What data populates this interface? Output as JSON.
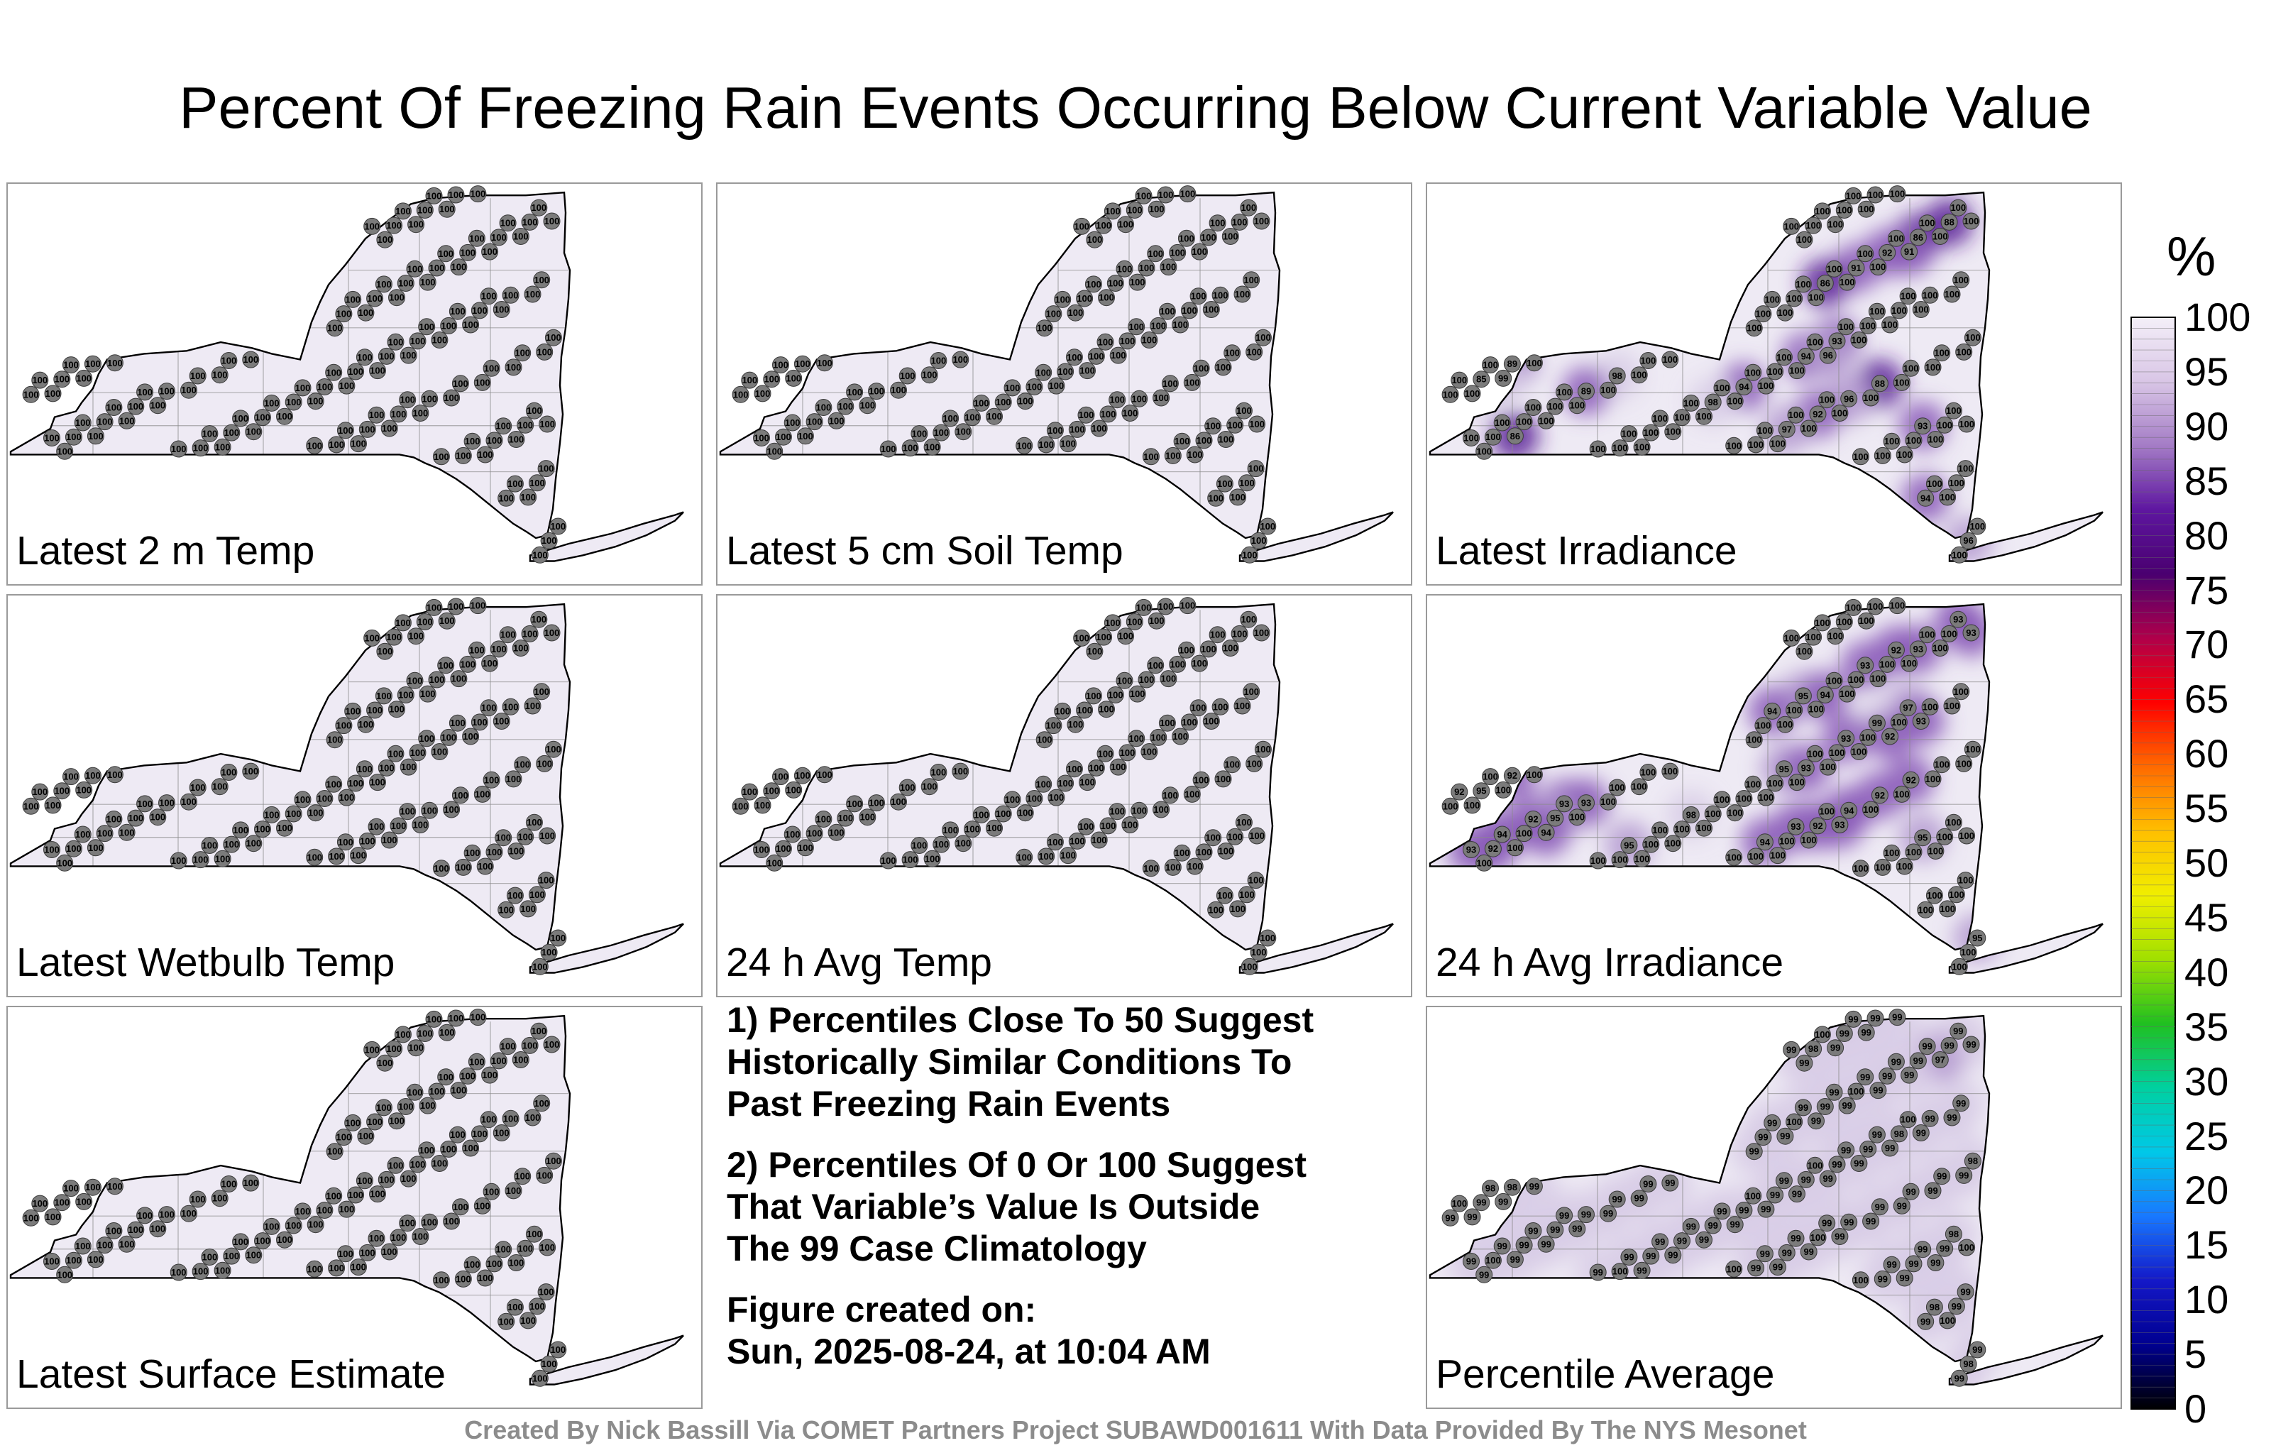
{
  "title": "Percent Of Freezing Rain Events Occurring Below Current Variable Value",
  "panels": [
    {
      "label": "Latest 2 m Temp",
      "values": [
        100,
        100,
        100,
        100,
        100,
        100,
        100,
        100,
        100,
        100,
        100,
        100,
        100,
        100,
        100,
        100,
        100,
        100,
        100,
        100,
        100,
        100,
        100,
        100,
        100,
        100,
        100,
        100,
        100,
        100,
        100,
        100,
        100,
        100,
        100,
        100,
        100,
        100,
        100,
        100,
        100,
        100,
        100,
        100,
        100,
        100,
        100,
        100,
        100,
        100,
        100,
        100,
        100,
        100,
        100,
        100,
        100,
        100,
        100,
        100,
        100,
        100,
        100,
        100,
        100,
        100,
        100,
        100,
        100,
        100,
        100,
        100,
        100,
        100,
        100,
        100,
        100,
        100,
        100,
        100,
        100,
        100,
        100,
        100,
        100,
        100,
        100,
        100,
        100,
        100,
        100,
        100,
        100,
        100,
        100,
        100,
        100,
        100,
        100,
        100,
        100,
        100,
        100,
        100,
        100,
        100,
        100,
        100,
        100,
        100,
        100,
        100,
        100,
        100,
        100,
        100,
        100,
        100,
        100,
        100,
        100,
        100,
        100,
        100,
        100,
        100,
        100,
        100
      ]
    },
    {
      "label": "Latest 5 cm Soil Temp",
      "values": [
        100,
        100,
        100,
        100,
        100,
        100,
        100,
        100,
        100,
        100,
        100,
        100,
        100,
        100,
        100,
        100,
        100,
        100,
        100,
        100,
        100,
        100,
        100,
        100,
        100,
        100,
        100,
        100,
        100,
        100,
        100,
        100,
        100,
        100,
        100,
        100,
        100,
        100,
        100,
        100,
        100,
        100,
        100,
        100,
        100,
        100,
        100,
        100,
        100,
        100,
        100,
        100,
        100,
        100,
        100,
        100,
        100,
        100,
        100,
        100,
        100,
        100,
        100,
        100,
        100,
        100,
        100,
        100,
        100,
        100,
        100,
        100,
        100,
        100,
        100,
        100,
        100,
        100,
        100,
        100,
        100,
        100,
        100,
        100,
        100,
        100,
        100,
        100,
        100,
        100,
        100,
        100,
        100,
        100,
        100,
        100,
        100,
        100,
        100,
        100,
        100,
        100,
        100,
        100,
        100,
        100,
        100,
        100,
        100,
        100,
        100,
        100,
        100,
        100,
        100,
        100,
        100,
        100,
        100,
        100,
        100,
        100,
        100,
        100,
        100,
        100,
        100,
        100
      ]
    },
    {
      "label": "Latest Irradiance",
      "values": [
        100,
        100,
        100,
        100,
        100,
        100,
        100,
        100,
        100,
        100,
        100,
        100,
        100,
        100,
        100,
        100,
        100,
        100,
        100,
        100,
        100,
        100,
        100,
        100,
        100,
        100,
        100,
        100,
        100,
        100,
        100,
        100,
        100,
        93,
        100,
        100,
        100,
        100,
        100,
        100,
        100,
        100,
        98,
        100,
        88,
        89,
        100,
        96,
        100,
        100,
        92,
        88,
        100,
        100,
        97,
        86,
        100,
        93,
        96,
        100,
        92,
        94,
        89,
        91,
        100,
        85,
        86,
        100,
        94,
        100,
        100,
        100,
        94,
        98,
        100,
        100,
        100,
        100,
        100,
        100,
        100,
        100,
        100,
        100,
        100,
        100,
        100,
        100,
        100,
        100,
        100,
        100,
        100,
        100,
        100,
        100,
        100,
        100,
        100,
        86,
        100,
        100,
        91,
        100,
        96,
        100,
        100,
        100,
        100,
        99,
        100,
        100,
        100,
        100,
        100,
        100,
        100,
        100,
        100,
        100,
        100,
        100,
        100,
        100,
        100,
        100,
        100,
        100
      ]
    },
    {
      "label": "Latest Wetbulb Temp",
      "values": [
        100,
        100,
        100,
        100,
        100,
        100,
        100,
        100,
        100,
        100,
        100,
        100,
        100,
        100,
        100,
        100,
        100,
        100,
        100,
        100,
        100,
        100,
        100,
        100,
        100,
        100,
        100,
        100,
        100,
        100,
        100,
        100,
        100,
        100,
        100,
        100,
        100,
        100,
        100,
        100,
        100,
        100,
        100,
        100,
        100,
        100,
        100,
        100,
        100,
        100,
        100,
        100,
        100,
        100,
        100,
        100,
        100,
        100,
        100,
        100,
        100,
        100,
        100,
        100,
        100,
        100,
        100,
        100,
        100,
        100,
        100,
        100,
        100,
        100,
        100,
        100,
        100,
        100,
        100,
        100,
        100,
        100,
        100,
        100,
        100,
        100,
        100,
        100,
        100,
        100,
        100,
        100,
        100,
        100,
        100,
        100,
        100,
        100,
        100,
        100,
        100,
        100,
        100,
        100,
        100,
        100,
        100,
        100,
        100,
        100,
        100,
        100,
        100,
        100,
        100,
        100,
        100,
        100,
        100,
        100,
        100,
        100,
        100,
        100,
        100,
        100,
        100,
        100
      ]
    },
    {
      "label": "24 h Avg Temp",
      "values": [
        100,
        100,
        100,
        100,
        100,
        100,
        100,
        100,
        100,
        100,
        100,
        100,
        100,
        100,
        100,
        100,
        100,
        100,
        100,
        100,
        100,
        100,
        100,
        100,
        100,
        100,
        100,
        100,
        100,
        100,
        100,
        100,
        100,
        100,
        100,
        100,
        100,
        100,
        100,
        100,
        100,
        100,
        100,
        100,
        100,
        100,
        100,
        100,
        100,
        100,
        100,
        100,
        100,
        100,
        100,
        100,
        100,
        100,
        100,
        100,
        100,
        100,
        100,
        100,
        100,
        100,
        100,
        100,
        100,
        100,
        100,
        100,
        100,
        100,
        100,
        100,
        100,
        100,
        100,
        100,
        100,
        100,
        100,
        100,
        100,
        100,
        100,
        100,
        100,
        100,
        100,
        100,
        100,
        100,
        100,
        100,
        100,
        100,
        100,
        100,
        100,
        100,
        100,
        100,
        100,
        100,
        100,
        100,
        100,
        100,
        100,
        100,
        100,
        100,
        100,
        100,
        100,
        100,
        100,
        100,
        100,
        100,
        100,
        100,
        100,
        100,
        100,
        100
      ]
    },
    {
      "label": "24 h Avg Irradiance",
      "values": [
        93,
        97,
        100,
        93,
        92,
        99,
        93,
        100,
        94,
        93,
        95,
        94,
        92,
        93,
        100,
        100,
        93,
        95,
        100,
        100,
        100,
        100,
        92,
        95,
        100,
        100,
        100,
        94,
        98,
        100,
        100,
        100,
        100,
        95,
        95,
        100,
        100,
        100,
        100,
        100,
        100,
        92,
        100,
        100,
        92,
        93,
        100,
        94,
        95,
        100,
        92,
        100,
        100,
        100,
        100,
        93,
        92,
        100,
        100,
        100,
        100,
        93,
        92,
        100,
        100,
        95,
        94,
        100,
        100,
        100,
        100,
        100,
        100,
        100,
        100,
        100,
        100,
        100,
        100,
        100,
        100,
        100,
        100,
        100,
        100,
        100,
        100,
        100,
        100,
        100,
        100,
        100,
        93,
        93,
        93,
        94,
        92,
        100,
        100,
        100,
        100,
        100,
        100,
        100,
        100,
        100,
        100,
        100,
        100,
        100,
        100,
        100,
        100,
        100,
        100,
        100,
        100,
        100,
        100,
        100,
        100,
        100,
        100,
        100,
        100,
        100,
        100,
        100
      ]
    },
    {
      "label": "Latest Surface Estimate",
      "values": [
        100,
        100,
        100,
        100,
        100,
        100,
        100,
        100,
        100,
        100,
        100,
        100,
        100,
        100,
        100,
        100,
        100,
        100,
        100,
        100,
        100,
        100,
        100,
        100,
        100,
        100,
        100,
        100,
        100,
        100,
        100,
        100,
        100,
        100,
        100,
        100,
        100,
        100,
        100,
        100,
        100,
        100,
        100,
        100,
        100,
        100,
        100,
        100,
        100,
        100,
        100,
        100,
        100,
        100,
        100,
        100,
        100,
        100,
        100,
        100,
        100,
        100,
        100,
        100,
        100,
        100,
        100,
        100,
        100,
        100,
        100,
        100,
        100,
        100,
        100,
        100,
        100,
        100,
        100,
        100,
        100,
        100,
        100,
        100,
        100,
        100,
        100,
        100,
        100,
        100,
        100,
        100,
        100,
        100,
        100,
        100,
        100,
        100,
        100,
        100,
        100,
        100,
        100,
        100,
        100,
        100,
        100,
        100,
        100,
        100,
        100,
        100,
        100,
        100,
        100,
        100,
        100,
        100,
        100,
        100,
        100,
        100,
        100,
        100,
        100,
        100,
        100,
        100
      ]
    },
    {
      "label": "Percentile Average",
      "values": [
        99,
        100,
        99,
        99,
        99,
        99,
        99,
        99,
        99,
        99,
        99,
        99,
        99,
        99,
        100,
        100,
        99,
        99,
        98,
        99,
        99,
        100,
        100,
        99,
        98,
        99,
        99,
        99,
        99,
        100,
        98,
        99,
        99,
        99,
        99,
        98,
        99,
        99,
        99,
        100,
        99,
        99,
        99,
        99,
        99,
        99,
        99,
        99,
        99,
        98,
        100,
        99,
        99,
        99,
        99,
        99,
        100,
        99,
        98,
        99,
        99,
        99,
        98,
        100,
        99,
        99,
        99,
        99,
        99,
        99,
        99,
        100,
        99,
        99,
        99,
        99,
        99,
        98,
        99,
        99,
        99,
        100,
        99,
        99,
        99,
        99,
        99,
        99,
        99,
        99,
        99,
        99,
        99,
        99,
        99,
        99,
        99,
        99,
        97,
        99,
        99,
        99,
        99,
        99,
        99,
        99,
        99,
        99,
        99,
        99,
        99,
        99,
        99,
        99,
        99,
        100,
        99,
        99,
        99,
        99,
        99,
        100,
        99,
        99,
        99,
        99,
        99,
        99
      ]
    }
  ],
  "notes": [
    "1) Percentiles Close To 50 Suggest\nHistorically Similar Conditions To\nPast Freezing Rain Events",
    "2) Percentiles Of 0 Or 100 Suggest\nThat Variable’s Value Is Outside\nThe 99 Case Climatology",
    "Figure created on:\nSun, 2025-08-24, at 10:04 AM"
  ],
  "colorbar": {
    "unit": "%",
    "ticks": [
      "100",
      "95",
      "90",
      "85",
      "80",
      "75",
      "70",
      "65",
      "60",
      "55",
      "50",
      "45",
      "40",
      "35",
      "30",
      "25",
      "20",
      "15",
      "10",
      "5",
      "0"
    ],
    "colors": [
      "#f4eff8",
      "#d9c6e6",
      "#a47cc6",
      "#5e16a0",
      "#4a0070",
      "#b0004a",
      "#ff0000",
      "#ff6a00",
      "#ffbf00",
      "#f0ee00",
      "#a0e000",
      "#20c020",
      "#00d0a0",
      "#00c8e8",
      "#1878ff",
      "#1418c8",
      "#000090",
      "#000000"
    ]
  },
  "credit": "Created By Nick Bassill Via COMET Partners Project SUBAWD001611 With Data Provided By The NYS Mesonet"
}
